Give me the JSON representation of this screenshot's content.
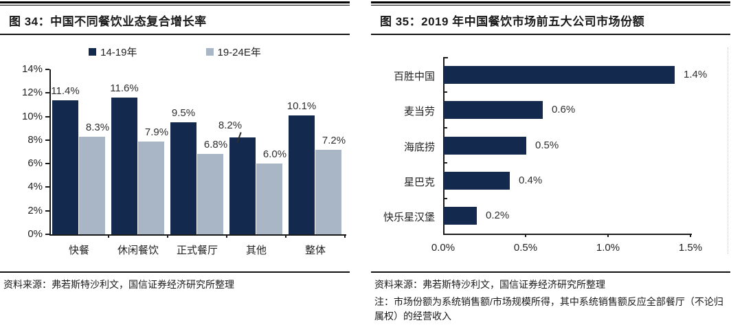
{
  "colors": {
    "primary_navy": "#14294e",
    "secondary_bluegray": "#a9b6c5",
    "axis": "#1a1a1a",
    "label_text": "#2e2e2e"
  },
  "figure34": {
    "source": "资料来源：弗若斯特沙利文，国信证券经济研究所整理"
  },
  "figure35": {
    "source": "资料来源：弗若斯特沙利文，国信证券经济研究所整理",
    "note": "注：市场份额为系统销售额/市场规模所得，其中系统销售额反应全部餐厅（不论归属权）的经营收入"
  },
  "chart_data": [
    {
      "type": "bar",
      "title": "图 34：中国不同餐饮业态复合增长率",
      "categories": [
        "快餐",
        "休闲餐饮",
        "正式餐厅",
        "其他",
        "整体"
      ],
      "series": [
        {
          "name": "14-19年",
          "color": "#14294e",
          "values": [
            11.4,
            11.6,
            9.5,
            8.2,
            10.1
          ]
        },
        {
          "name": "19-24E年",
          "color": "#a9b6c5",
          "values": [
            8.3,
            7.9,
            6.8,
            6.0,
            7.2
          ]
        }
      ],
      "value_suffix": "%",
      "ylabel": "",
      "ylim": [
        0,
        14
      ],
      "yticks": [
        0,
        2,
        4,
        6,
        8,
        10,
        12,
        14
      ],
      "grid": false,
      "legend_position": "top",
      "data_labels": true
    },
    {
      "type": "bar-horizontal",
      "title": "图 35：2019 年中国餐饮市场前五大公司市场份额",
      "categories": [
        "百胜中国",
        "麦当劳",
        "海底捞",
        "星巴克",
        "快乐星汉堡"
      ],
      "values": [
        1.4,
        0.6,
        0.5,
        0.4,
        0.2
      ],
      "value_suffix": "%",
      "xlabel": "",
      "xlim": [
        0,
        1.5
      ],
      "xticks": [
        0.0,
        0.5,
        1.0,
        1.5
      ],
      "bar_color": "#14294e",
      "grid": false,
      "data_labels": true
    }
  ]
}
